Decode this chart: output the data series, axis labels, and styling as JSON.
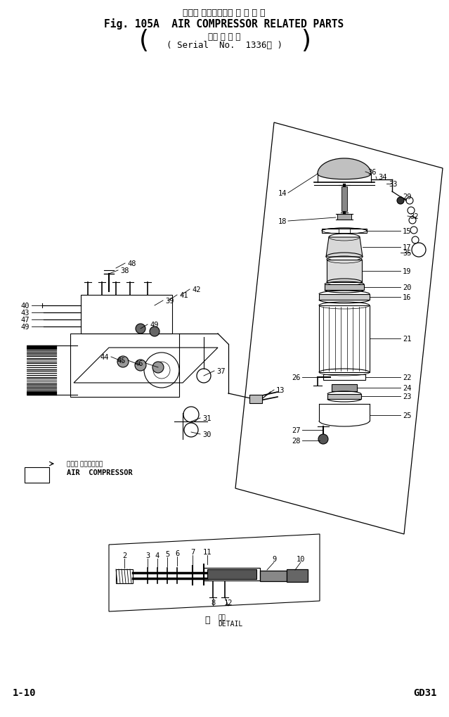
{
  "title_jp": "エアー コンプレッサ 関 連 部 品",
  "title_en": "Fig. 105A  AIR COMPRESSOR RELATED PARTS",
  "sub_jp": "（適 用 号 機",
  "sub_en": "( Serial  No.  1336～ )",
  "footer_left": "1-10",
  "footer_right": "GD31",
  "comp_jp": "エアー コンプレッサ",
  "comp_en": "AIR  COMPRESSOR",
  "detail_label": "DETAIL",
  "bg": "#ffffff",
  "lc": "#000000"
}
